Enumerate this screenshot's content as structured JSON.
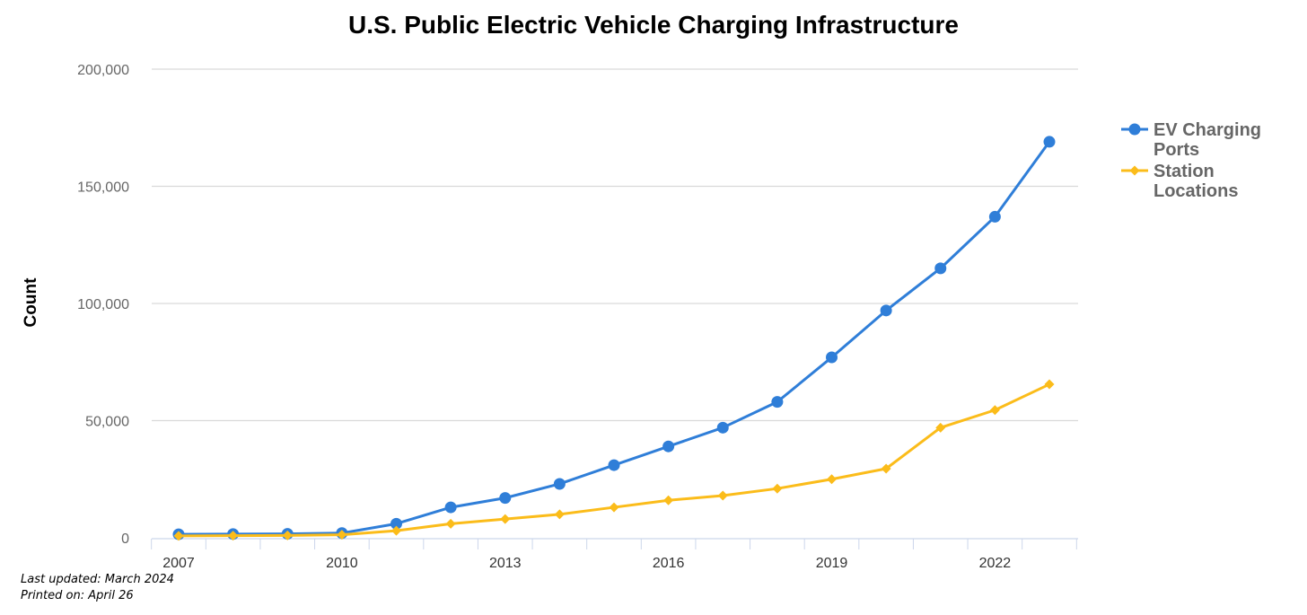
{
  "chart_data": {
    "type": "line",
    "title": "U.S. Public Electric Vehicle Charging Infrastructure",
    "xlabel": "",
    "ylabel": "Count",
    "x": [
      2007,
      2008,
      2009,
      2010,
      2011,
      2012,
      2013,
      2014,
      2015,
      2016,
      2017,
      2018,
      2019,
      2020,
      2021,
      2022,
      2023
    ],
    "x_tick_labels": [
      "2007",
      "2010",
      "2013",
      "2016",
      "2019",
      "2022"
    ],
    "y_tick_labels": [
      "0",
      "50,000",
      "100,000",
      "150,000",
      "200,000"
    ],
    "ylim": [
      0,
      200000
    ],
    "grid": true,
    "legend_position": "right",
    "series": [
      {
        "name": "EV Charging Ports",
        "legend_lines": [
          "EV Charging",
          "Ports"
        ],
        "color": "#2f7ed8",
        "marker": "circle",
        "values": [
          1500,
          1600,
          1700,
          2000,
          6000,
          13000,
          17000,
          23000,
          31000,
          39000,
          47000,
          58000,
          77000,
          97000,
          115000,
          137000,
          169000
        ]
      },
      {
        "name": "Station Locations",
        "legend_lines": [
          "Station",
          "Locations"
        ],
        "color": "#fbbc1a",
        "marker": "diamond",
        "values": [
          800,
          900,
          1000,
          1300,
          3000,
          6000,
          8000,
          10000,
          13000,
          16000,
          18000,
          21000,
          25000,
          29500,
          47000,
          54500,
          65500
        ]
      }
    ]
  },
  "footer": {
    "last_updated": "Last updated: March 2024",
    "printed_on": "Printed on: April 26"
  }
}
